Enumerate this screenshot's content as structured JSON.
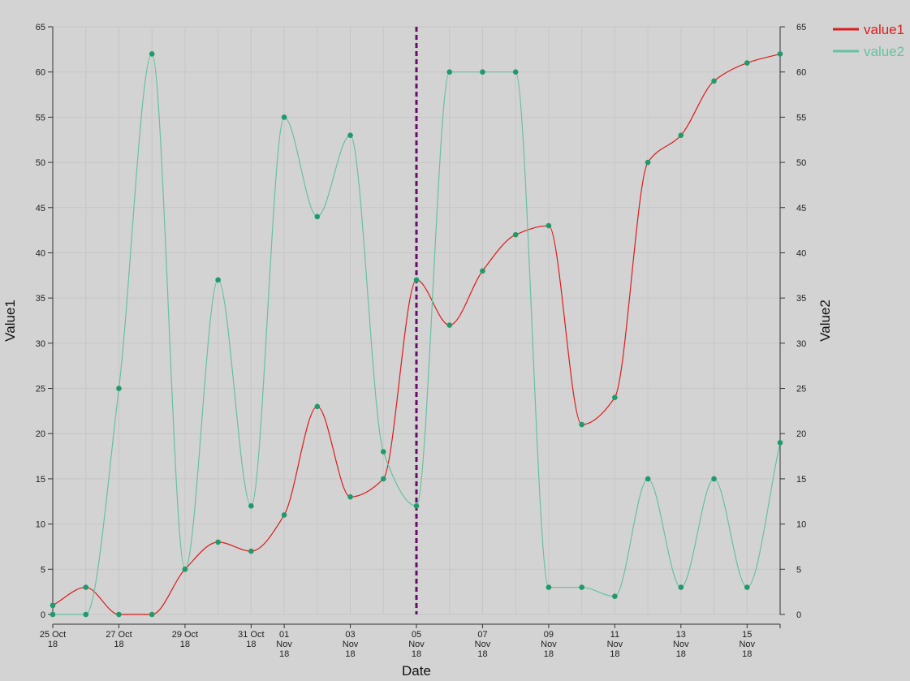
{
  "chart_data": {
    "type": "line",
    "x": [
      "2018-10-25",
      "2018-10-26",
      "2018-10-27",
      "2018-10-28",
      "2018-10-29",
      "2018-10-30",
      "2018-10-31",
      "2018-11-01",
      "2018-11-02",
      "2018-11-03",
      "2018-11-04",
      "2018-11-05",
      "2018-11-06",
      "2018-11-07",
      "2018-11-08",
      "2018-11-09",
      "2018-11-10",
      "2018-11-11",
      "2018-11-12",
      "2018-11-13",
      "2018-11-14",
      "2018-11-15",
      "2018-11-16"
    ],
    "series": [
      {
        "name": "value1",
        "color": "#dd1c1c",
        "axis": "left",
        "values": [
          1,
          3,
          0,
          0,
          5,
          8,
          7,
          11,
          23,
          13,
          15,
          37,
          32,
          38,
          42,
          43,
          21,
          24,
          50,
          53,
          59,
          61,
          62
        ]
      },
      {
        "name": "value2",
        "color": "#66c2a0",
        "axis": "right",
        "values": [
          0,
          0,
          25,
          62,
          5,
          37,
          12,
          55,
          44,
          53,
          18,
          12,
          60,
          60,
          60,
          3,
          3,
          2,
          15,
          3,
          15,
          3,
          19
        ]
      }
    ],
    "point_color": "#1f9a6a",
    "xlabel": "Date",
    "ylabel": "Value1",
    "ylabel_right": "Value2",
    "ylim": [
      0,
      65
    ],
    "ylim_right": [
      0,
      65
    ],
    "y_ticks": [
      0,
      5,
      10,
      15,
      20,
      25,
      30,
      35,
      40,
      45,
      50,
      55,
      60,
      65
    ],
    "x_tick_labels": [
      {
        "date": "2018-10-25",
        "lines": [
          "25 Oct",
          "18"
        ]
      },
      {
        "date": "2018-10-27",
        "lines": [
          "27 Oct",
          "18"
        ]
      },
      {
        "date": "2018-10-29",
        "lines": [
          "29 Oct",
          "18"
        ]
      },
      {
        "date": "2018-10-31",
        "lines": [
          "31 Oct",
          "18"
        ]
      },
      {
        "date": "2018-11-01",
        "lines": [
          "01",
          "Nov",
          "18"
        ]
      },
      {
        "date": "2018-11-03",
        "lines": [
          "03",
          "Nov",
          "18"
        ]
      },
      {
        "date": "2018-11-05",
        "lines": [
          "05",
          "Nov",
          "18"
        ]
      },
      {
        "date": "2018-11-07",
        "lines": [
          "07",
          "Nov",
          "18"
        ]
      },
      {
        "date": "2018-11-09",
        "lines": [
          "09",
          "Nov",
          "18"
        ]
      },
      {
        "date": "2018-11-11",
        "lines": [
          "11",
          "Nov",
          "18"
        ]
      },
      {
        "date": "2018-11-13",
        "lines": [
          "13",
          "Nov",
          "18"
        ]
      },
      {
        "date": "2018-11-15",
        "lines": [
          "15",
          "Nov",
          "18"
        ]
      }
    ],
    "marker_line": {
      "date": "2018-11-05",
      "color": "#6a0a6e",
      "style": "dashed"
    },
    "grid": true,
    "legend": {
      "position": "top-right",
      "entries": [
        "value1",
        "value2"
      ]
    }
  }
}
